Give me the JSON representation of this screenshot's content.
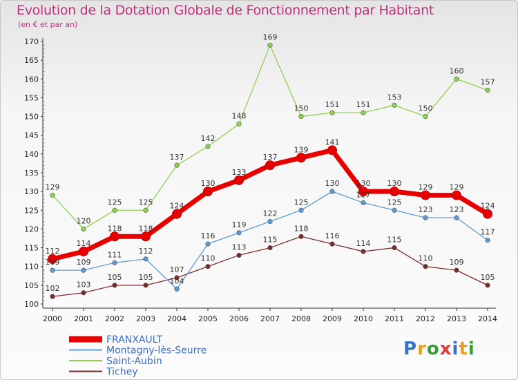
{
  "header": {
    "title": "Evolution de la Dotation Globale de Fonctionnement par Habitant",
    "subtitle": "(en € et par an)"
  },
  "logo_text": "Proxiti",
  "chart_data": {
    "type": "line",
    "title": "Evolution de la Dotation Globale de Fonctionnement par Habitant",
    "subtitle": "(en € et par an)",
    "x": [
      "2000",
      "2001",
      "2002",
      "2003",
      "2004",
      "2005",
      "2006",
      "2007",
      "2008",
      "2009",
      "2010",
      "2011",
      "2012",
      "2013",
      "2014"
    ],
    "ylim": [
      100,
      170
    ],
    "yticks": [
      100,
      105,
      110,
      115,
      120,
      125,
      130,
      135,
      140,
      145,
      150,
      155,
      160,
      165,
      170
    ],
    "grid": false,
    "legend_position": "bottom-left",
    "series": [
      {
        "name": "FRANXAULT",
        "color": "#e60000",
        "values": [
          112,
          114,
          118,
          118,
          124,
          130,
          133,
          137,
          139,
          141,
          130,
          130,
          129,
          129,
          124
        ]
      },
      {
        "name": "Montagny-lès-Seurre",
        "color": "#5b9bd5",
        "values": [
          109,
          109,
          111,
          112,
          104,
          116,
          119,
          122,
          125,
          130,
          127,
          125,
          123,
          123,
          117
        ]
      },
      {
        "name": "Saint-Aubin",
        "color": "#8ed14a",
        "values": [
          129,
          120,
          125,
          125,
          137,
          142,
          148,
          169,
          150,
          151,
          151,
          153,
          150,
          160,
          157
        ]
      },
      {
        "name": "Tichey",
        "color": "#7b2a2a",
        "values": [
          102,
          103,
          105,
          105,
          107,
          110,
          113,
          115,
          118,
          116,
          114,
          115,
          110,
          109,
          105
        ]
      }
    ]
  }
}
